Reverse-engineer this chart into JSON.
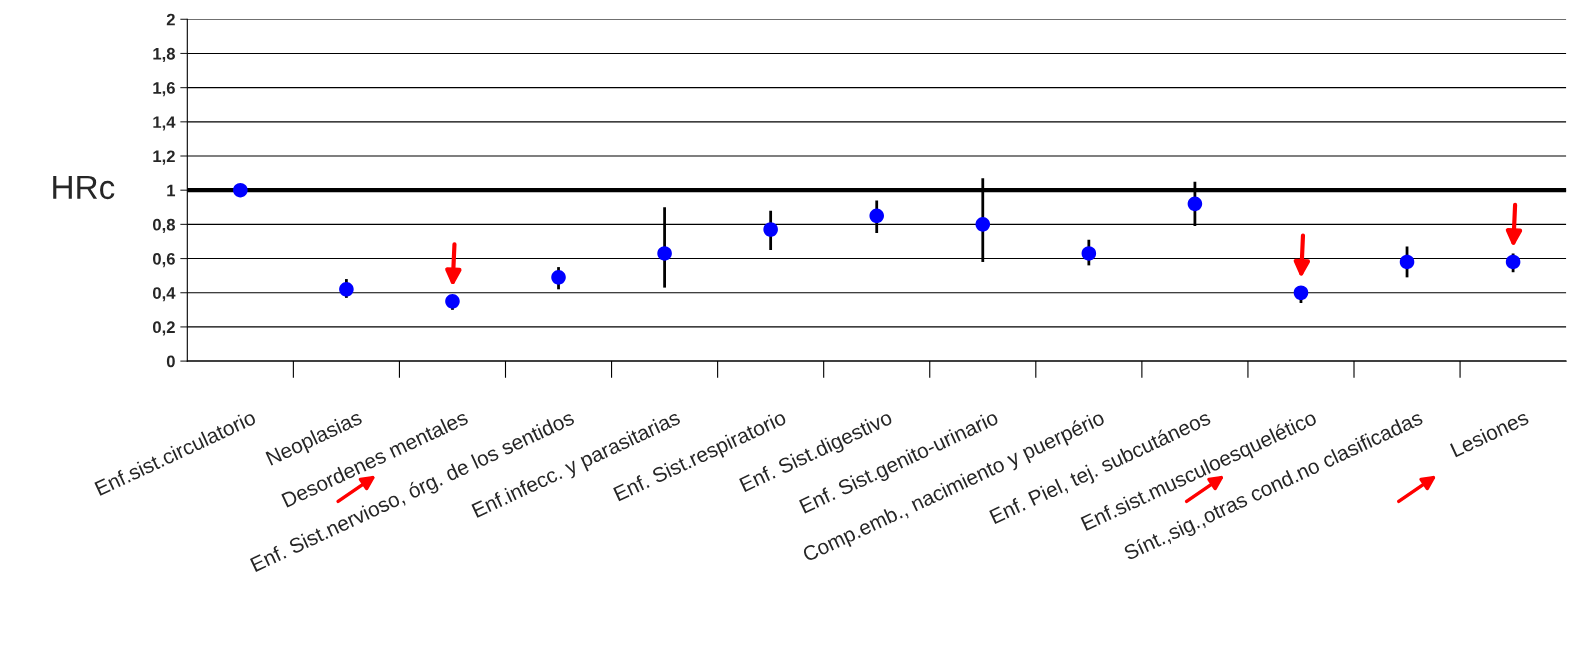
{
  "chart_data": {
    "type": "scatter",
    "ylabel": "HRc",
    "categories": [
      "Enf.sist.circulatorio",
      "Neoplasias",
      "Desordenes mentales",
      "Enf. Sist.nervioso, órg. de los sentidos",
      "Enf.infecc. y parasitarias",
      "Enf. Sist.respiratorio",
      "Enf. Sist.digestivo",
      "Enf. Sist.genito-urinario",
      "Comp.emb., nacimiento y puerpério",
      "Enf. Piel, tej. subcutáneos",
      "Enf.sist.musculoesquelético",
      "Sínt.,sig.,otras cond.no clasificadas",
      "Lesiones"
    ],
    "series": [
      {
        "color": "#0000ff",
        "values": [
          1.0,
          0.42,
          0.35,
          0.49,
          0.63,
          0.77,
          0.85,
          0.8,
          0.63,
          0.92,
          0.4,
          0.58,
          0.58
        ],
        "errors": [
          null,
          [
            0.37,
            0.48
          ],
          [
            0.3,
            0.35
          ],
          [
            0.42,
            0.55
          ],
          [
            0.43,
            0.9
          ],
          [
            0.65,
            0.88
          ],
          [
            0.75,
            0.94
          ],
          [
            0.58,
            1.07
          ],
          [
            0.56,
            0.71
          ],
          [
            0.79,
            1.05
          ],
          [
            0.34,
            0.4
          ],
          [
            0.49,
            0.67
          ],
          [
            0.52,
            0.63
          ]
        ]
      }
    ],
    "ylim": [
      0,
      2
    ],
    "yticks": [
      0,
      {
        "value": 0.2,
        "label": "0,2"
      },
      {
        "value": 0.4,
        "label": "0,4"
      },
      {
        "value": 0.6,
        "label": "0,6"
      },
      {
        "value": 0.8,
        "label": "0,8"
      },
      1,
      {
        "value": 1.2,
        "label": "1,2"
      },
      {
        "value": 1.4,
        "label": "1,4"
      },
      {
        "value": 1.6,
        "label": "1,6"
      },
      {
        "value": 1.8,
        "label": "1,8"
      },
      2
    ],
    "ref_lines": [
      {
        "axis": "y",
        "value": 1,
        "color": "#000000"
      }
    ],
    "grid": "y",
    "marker": "circle",
    "legend": false
  }
}
